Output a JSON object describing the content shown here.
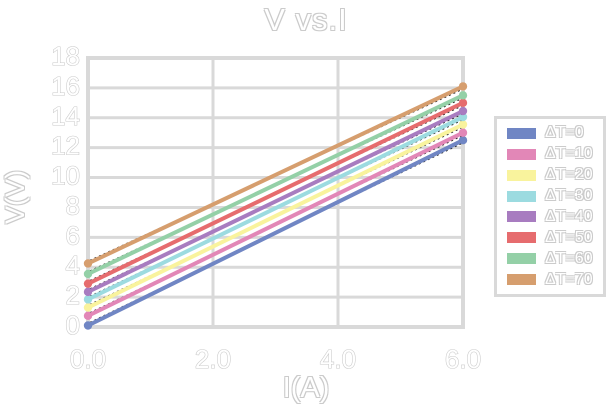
{
  "chart_data": {
    "type": "line",
    "title": "V vs.I",
    "xlabel": "I(A)",
    "ylabel": "V(V)",
    "xlim": [
      0,
      6
    ],
    "ylim": [
      0,
      18
    ],
    "x_tick_values": [
      0,
      2,
      4,
      6
    ],
    "x_tick_labels": [
      "0.0",
      "2.0",
      "4.0",
      "6.0"
    ],
    "y_tick_values": [
      0,
      2,
      4,
      6,
      8,
      10,
      12,
      14,
      16,
      18
    ],
    "y_tick_labels": [
      "0",
      "2",
      "4",
      "6",
      "8",
      "10",
      "12",
      "14",
      "16",
      "18"
    ],
    "grid": true,
    "legend_position": "right",
    "x": [
      0,
      6
    ],
    "series": [
      {
        "name": "ΔT=0",
        "color": "#7086c4",
        "values": [
          0.1,
          12.5
        ]
      },
      {
        "name": "ΔT=10",
        "color": "#e287b7",
        "values": [
          0.75,
          13.0
        ]
      },
      {
        "name": "ΔT=20",
        "color": "#f9f39d",
        "values": [
          1.3,
          13.55
        ]
      },
      {
        "name": "ΔT=30",
        "color": "#9cdbe0",
        "values": [
          1.85,
          14.05
        ]
      },
      {
        "name": "ΔT=40",
        "color": "#a87cc0",
        "values": [
          2.35,
          14.45
        ]
      },
      {
        "name": "ΔT=50",
        "color": "#e66c6e",
        "values": [
          2.9,
          15.0
        ]
      },
      {
        "name": "ΔT=60",
        "color": "#94d0a7",
        "values": [
          3.55,
          15.5
        ]
      },
      {
        "name": "ΔT=70",
        "color": "#d69e6e",
        "values": [
          4.25,
          16.1
        ]
      }
    ],
    "trendline": {
      "visible": true,
      "style": "dotted",
      "color": "#2a2a2a"
    },
    "style": {
      "background": "#ffffff",
      "grid_color": "#d9d9d9",
      "border_color": "#d9d9d9",
      "text_fill": "#ffffff",
      "text_outline": "#c8c8c8",
      "line_width": 4,
      "marker_radius": 4.2
    }
  }
}
